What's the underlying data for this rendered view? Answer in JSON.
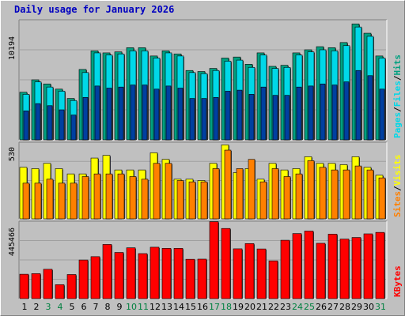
{
  "title": "Daily usage for January 2026",
  "colors": {
    "background": "#c0c0c0",
    "hits": "#00a080",
    "files": "#00d8e8",
    "pages": "#0040a0",
    "visits": "#ffff00",
    "sites": "#ff8000",
    "kbytes": "#ff0000",
    "weekday_label": "#000000",
    "weekend_label": "#008040",
    "title": "#0000c0"
  },
  "chart_data": [
    {
      "type": "bar",
      "panel": "hits-files-pages",
      "title": "Daily usage for January 2026",
      "y_tick_label": "10194",
      "ylim": [
        0,
        11600
      ],
      "legend": [
        "Pages",
        "Files",
        "Hits"
      ],
      "legend_placement": "right-vertical",
      "categories": [
        "1",
        "2",
        "3",
        "4",
        "5",
        "6",
        "7",
        "8",
        "9",
        "10",
        "11",
        "12",
        "13",
        "14",
        "15",
        "16",
        "17",
        "18",
        "19",
        "20",
        "21",
        "22",
        "23",
        "24",
        "25",
        "26",
        "27",
        "28",
        "29",
        "30",
        "31"
      ],
      "weekend_days": [
        "3",
        "4",
        "10",
        "11",
        "17",
        "18",
        "24",
        "25",
        "31"
      ],
      "series": [
        {
          "name": "Hits",
          "values": [
            4600,
            5800,
            5400,
            4900,
            4000,
            6800,
            8600,
            8400,
            8500,
            8900,
            8900,
            8100,
            8600,
            8300,
            6700,
            6600,
            6900,
            7900,
            8000,
            7300,
            8400,
            7100,
            7200,
            8400,
            8700,
            9000,
            8900,
            9400,
            11200,
            10300,
            8100
          ]
        },
        {
          "name": "Files",
          "values": [
            4400,
            5600,
            5100,
            4700,
            3800,
            6500,
            8400,
            8200,
            8300,
            8600,
            8600,
            7900,
            8400,
            8100,
            6500,
            6400,
            6700,
            7600,
            7700,
            7000,
            8200,
            6900,
            7000,
            8200,
            8500,
            8700,
            8600,
            9100,
            10900,
            10000,
            7900
          ]
        },
        {
          "name": "Pages",
          "values": [
            2800,
            3500,
            3300,
            2900,
            2400,
            4100,
            5200,
            5000,
            5100,
            5300,
            5300,
            4900,
            5200,
            5000,
            4000,
            4000,
            4100,
            4700,
            4800,
            4400,
            5100,
            4300,
            4300,
            5100,
            5200,
            5400,
            5300,
            5600,
            6700,
            6200,
            4900
          ]
        }
      ]
    },
    {
      "type": "bar",
      "panel": "visits-sites",
      "y_tick_label": "530",
      "ylim": [
        0,
        580
      ],
      "legend": [
        "Sites",
        "Visits"
      ],
      "legend_placement": "right-vertical",
      "categories": [
        "1",
        "2",
        "3",
        "4",
        "5",
        "6",
        "7",
        "8",
        "9",
        "10",
        "11",
        "12",
        "13",
        "14",
        "15",
        "16",
        "17",
        "18",
        "19",
        "20",
        "21",
        "22",
        "23",
        "24",
        "25",
        "26",
        "27",
        "28",
        "29",
        "30",
        "31"
      ],
      "series": [
        {
          "name": "Visits",
          "values": [
            390,
            380,
            420,
            380,
            340,
            340,
            460,
            480,
            370,
            370,
            370,
            500,
            450,
            300,
            300,
            290,
            420,
            560,
            350,
            380,
            300,
            420,
            370,
            380,
            470,
            420,
            420,
            410,
            470,
            390,
            330
          ]
        },
        {
          "name": "Sites",
          "values": [
            270,
            270,
            300,
            270,
            270,
            320,
            340,
            340,
            340,
            320,
            300,
            420,
            420,
            290,
            280,
            280,
            380,
            520,
            380,
            450,
            280,
            380,
            320,
            340,
            440,
            390,
            370,
            370,
            400,
            370,
            310
          ]
        }
      ]
    },
    {
      "type": "bar",
      "panel": "kbytes",
      "y_tick_label": "445466",
      "ylim": [
        0,
        533000
      ],
      "legend": [
        "KBytes"
      ],
      "legend_placement": "right-vertical",
      "categories": [
        "1",
        "2",
        "3",
        "4",
        "5",
        "6",
        "7",
        "8",
        "9",
        "10",
        "11",
        "12",
        "13",
        "14",
        "15",
        "16",
        "17",
        "18",
        "19",
        "20",
        "21",
        "22",
        "23",
        "24",
        "25",
        "26",
        "27",
        "28",
        "29",
        "30",
        "31"
      ],
      "series": [
        {
          "name": "KBytes",
          "values": [
            168000,
            172000,
            202000,
            96000,
            166000,
            266000,
            289000,
            373000,
            318000,
            350000,
            310000,
            354000,
            346000,
            346000,
            271000,
            272000,
            530000,
            483000,
            343000,
            379000,
            342000,
            260000,
            402000,
            448000,
            465000,
            381000,
            444000,
            410000,
            421000,
            446000,
            456000
          ]
        }
      ]
    }
  ]
}
